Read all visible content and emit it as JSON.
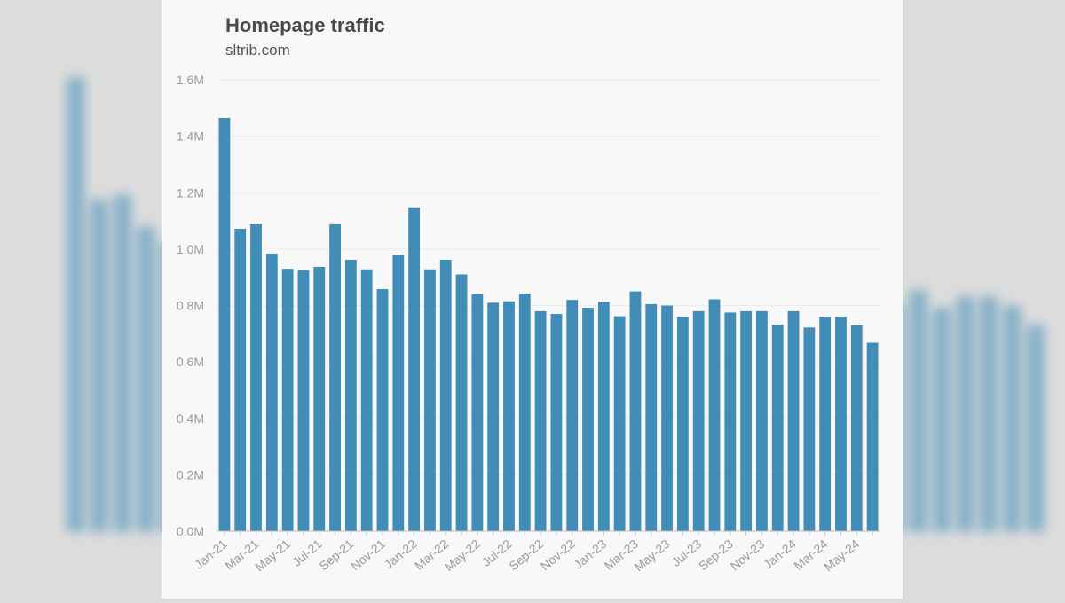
{
  "chart_data": {
    "type": "bar",
    "title": "Homepage traffic",
    "subtitle": "sltrib.com",
    "xlabel": "",
    "ylabel": "",
    "ylim": [
      0,
      1600000
    ],
    "yticks": [
      0,
      200000,
      400000,
      600000,
      800000,
      1000000,
      1200000,
      1400000,
      1600000
    ],
    "ytick_labels": [
      "0.0M",
      "0.2M",
      "0.4M",
      "0.6M",
      "0.8M",
      "1.0M",
      "1.2M",
      "1.4M",
      "1.6M"
    ],
    "grid": true,
    "legend": "none",
    "bar_color": "#428db8",
    "categories": [
      "Jan-21",
      "Feb-21",
      "Mar-21",
      "Apr-21",
      "May-21",
      "Jun-21",
      "Jul-21",
      "Aug-21",
      "Sep-21",
      "Oct-21",
      "Nov-21",
      "Dec-21",
      "Jan-22",
      "Feb-22",
      "Mar-22",
      "Apr-22",
      "May-22",
      "Jun-22",
      "Jul-22",
      "Aug-22",
      "Sep-22",
      "Oct-22",
      "Nov-22",
      "Dec-22",
      "Jan-23",
      "Feb-23",
      "Mar-23",
      "Apr-23",
      "May-23",
      "Jun-23",
      "Jul-23",
      "Aug-23",
      "Sep-23",
      "Oct-23",
      "Nov-23",
      "Dec-23",
      "Jan-24",
      "Feb-24",
      "Mar-24",
      "Apr-24",
      "May-24",
      "Jun-24"
    ],
    "x_tick_labels": [
      "Jan-21",
      "Mar-21",
      "May-21",
      "Jul-21",
      "Sep-21",
      "Nov-21",
      "Jan-22",
      "Mar-22",
      "May-22",
      "Jul-22",
      "Sep-22",
      "Nov-22",
      "Jan-23",
      "Mar-23",
      "May-23",
      "Jul-23",
      "Sep-23",
      "Nov-23",
      "Jan-24",
      "Mar-24",
      "May-24"
    ],
    "values": [
      1465000,
      1072000,
      1088000,
      984000,
      930000,
      925000,
      937000,
      1088000,
      962000,
      928000,
      858000,
      980000,
      1148000,
      928000,
      962000,
      910000,
      840000,
      810000,
      815000,
      842000,
      780000,
      770000,
      820000,
      792000,
      813000,
      762000,
      850000,
      805000,
      800000,
      760000,
      780000,
      822000,
      775000,
      780000,
      780000,
      732000,
      780000,
      722000,
      760000,
      760000,
      730000,
      668000
    ]
  }
}
